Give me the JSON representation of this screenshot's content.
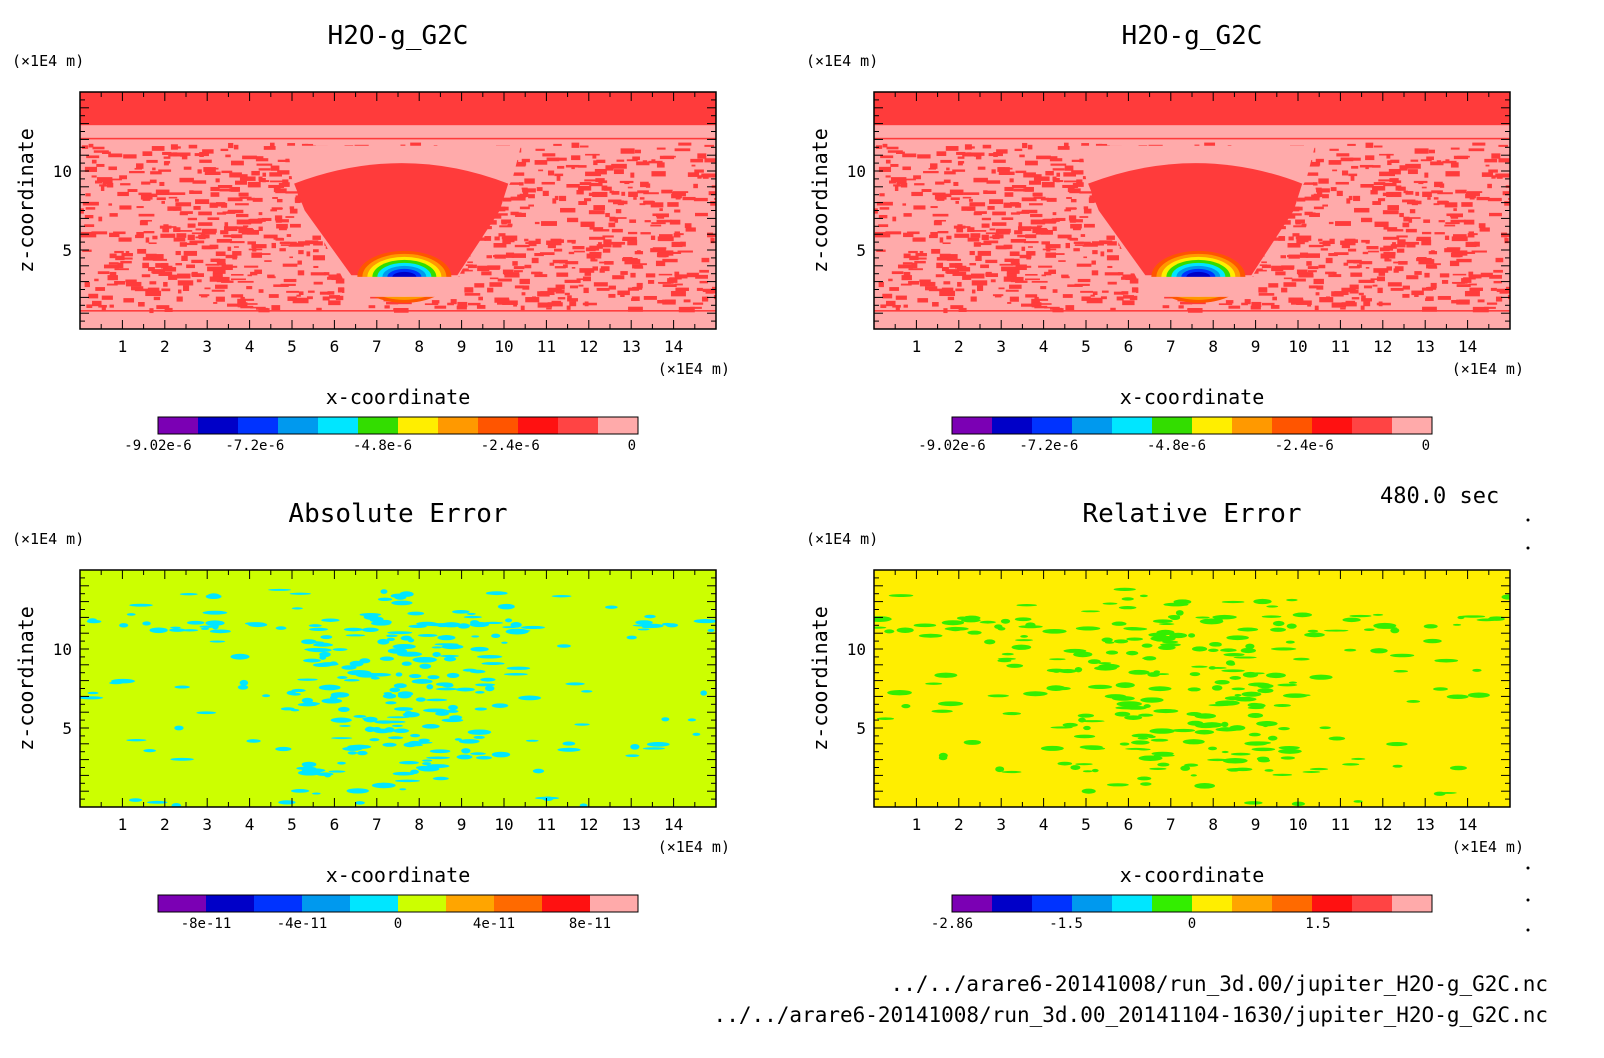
{
  "figure": {
    "time_label": "480.0 sec",
    "files": [
      "../../arare6-20141008/run_3d.00/jupiter_H2O-g_G2C.nc",
      "../../arare6-20141008/run_3d.00_20141104-1630/jupiter_H2O-g_G2C.nc"
    ]
  },
  "chart_data": [
    {
      "type": "heatmap",
      "title": "H2O-g_G2C",
      "xlabel": "x-coordinate",
      "ylabel": "z-coordinate",
      "x_unit": "(×1E4 m)",
      "y_unit": "(×1E4 m)",
      "xlim": [
        0,
        15
      ],
      "ylim": [
        0,
        15
      ],
      "x_ticks": [
        "1",
        "2",
        "3",
        "4",
        "5",
        "6",
        "7",
        "8",
        "9",
        "10",
        "11",
        "12",
        "13",
        "14"
      ],
      "y_ticks": [
        "5",
        "10"
      ],
      "colorbar": {
        "range": [
          -9.02e-06,
          0
        ],
        "tick_labels": [
          "-9.02e-6",
          "-7.2e-6",
          "-4.8e-6",
          "-2.4e-6",
          "0"
        ],
        "colors": [
          "#7b00b4",
          "#0000c8",
          "#0033ff",
          "#0099ee",
          "#00e6ff",
          "#33dd00",
          "#ffee00",
          "#ff9900",
          "#ff5500",
          "#ff1111",
          "#ff4444",
          "#ffaaaa"
        ]
      },
      "pattern": "plume",
      "colors": {
        "background": "#ff3b3b",
        "light": "#ffaaaa"
      }
    },
    {
      "type": "heatmap",
      "title": "H2O-g_G2C",
      "xlabel": "x-coordinate",
      "ylabel": "z-coordinate",
      "x_unit": "(×1E4 m)",
      "y_unit": "(×1E4 m)",
      "xlim": [
        0,
        15
      ],
      "ylim": [
        0,
        15
      ],
      "x_ticks": [
        "1",
        "2",
        "3",
        "4",
        "5",
        "6",
        "7",
        "8",
        "9",
        "10",
        "11",
        "12",
        "13",
        "14"
      ],
      "y_ticks": [
        "5",
        "10"
      ],
      "colorbar": {
        "range": [
          -9.02e-06,
          0
        ],
        "tick_labels": [
          "-9.02e-6",
          "-7.2e-6",
          "-4.8e-6",
          "-2.4e-6",
          "0"
        ],
        "colors": [
          "#7b00b4",
          "#0000c8",
          "#0033ff",
          "#0099ee",
          "#00e6ff",
          "#33dd00",
          "#ffee00",
          "#ff9900",
          "#ff5500",
          "#ff1111",
          "#ff4444",
          "#ffaaaa"
        ]
      },
      "pattern": "plume",
      "colors": {
        "background": "#ff3b3b",
        "light": "#ffaaaa"
      }
    },
    {
      "type": "heatmap",
      "title": "Absolute Error",
      "xlabel": "x-coordinate",
      "ylabel": "z-coordinate",
      "x_unit": "(×1E4 m)",
      "y_unit": "(×1E4 m)",
      "xlim": [
        0,
        15
      ],
      "ylim": [
        0,
        15
      ],
      "x_ticks": [
        "1",
        "2",
        "3",
        "4",
        "5",
        "6",
        "7",
        "8",
        "9",
        "10",
        "11",
        "12",
        "13",
        "14"
      ],
      "y_ticks": [
        "5",
        "10"
      ],
      "colorbar": {
        "range": [
          -1e-10,
          1e-10
        ],
        "tick_labels": [
          "-8e-11",
          "-4e-11",
          "0",
          "4e-11",
          "8e-11"
        ],
        "colors": [
          "#7b00b4",
          "#0000c8",
          "#0033ff",
          "#0099ee",
          "#00e6ff",
          "#ccff00",
          "#ffa500",
          "#ff6a00",
          "#ff1111",
          "#ffaaaa"
        ]
      },
      "pattern": "noise",
      "colors": {
        "background": "#ccff00",
        "speckle": "#00e6ff"
      }
    },
    {
      "type": "heatmap",
      "title": "Relative Error",
      "xlabel": "x-coordinate",
      "ylabel": "z-coordinate",
      "x_unit": "(×1E4 m)",
      "y_unit": "(×1E4 m)",
      "xlim": [
        0,
        15
      ],
      "ylim": [
        0,
        15
      ],
      "x_ticks": [
        "1",
        "2",
        "3",
        "4",
        "5",
        "6",
        "7",
        "8",
        "9",
        "10",
        "11",
        "12",
        "13",
        "14"
      ],
      "y_ticks": [
        "5",
        "10"
      ],
      "colorbar": {
        "range": [
          -2.86,
          2.86
        ],
        "tick_labels": [
          "-2.86",
          "-1.5",
          "0",
          "1.5"
        ],
        "colors": [
          "#7b00b4",
          "#0000c8",
          "#0033ff",
          "#0099ee",
          "#00e6ff",
          "#33ee00",
          "#ffee00",
          "#ffa500",
          "#ff6a00",
          "#ff1111",
          "#ff4444",
          "#ffaaaa"
        ]
      },
      "pattern": "noise",
      "colors": {
        "background": "#ffee00",
        "speckle": "#33ee00"
      }
    }
  ]
}
